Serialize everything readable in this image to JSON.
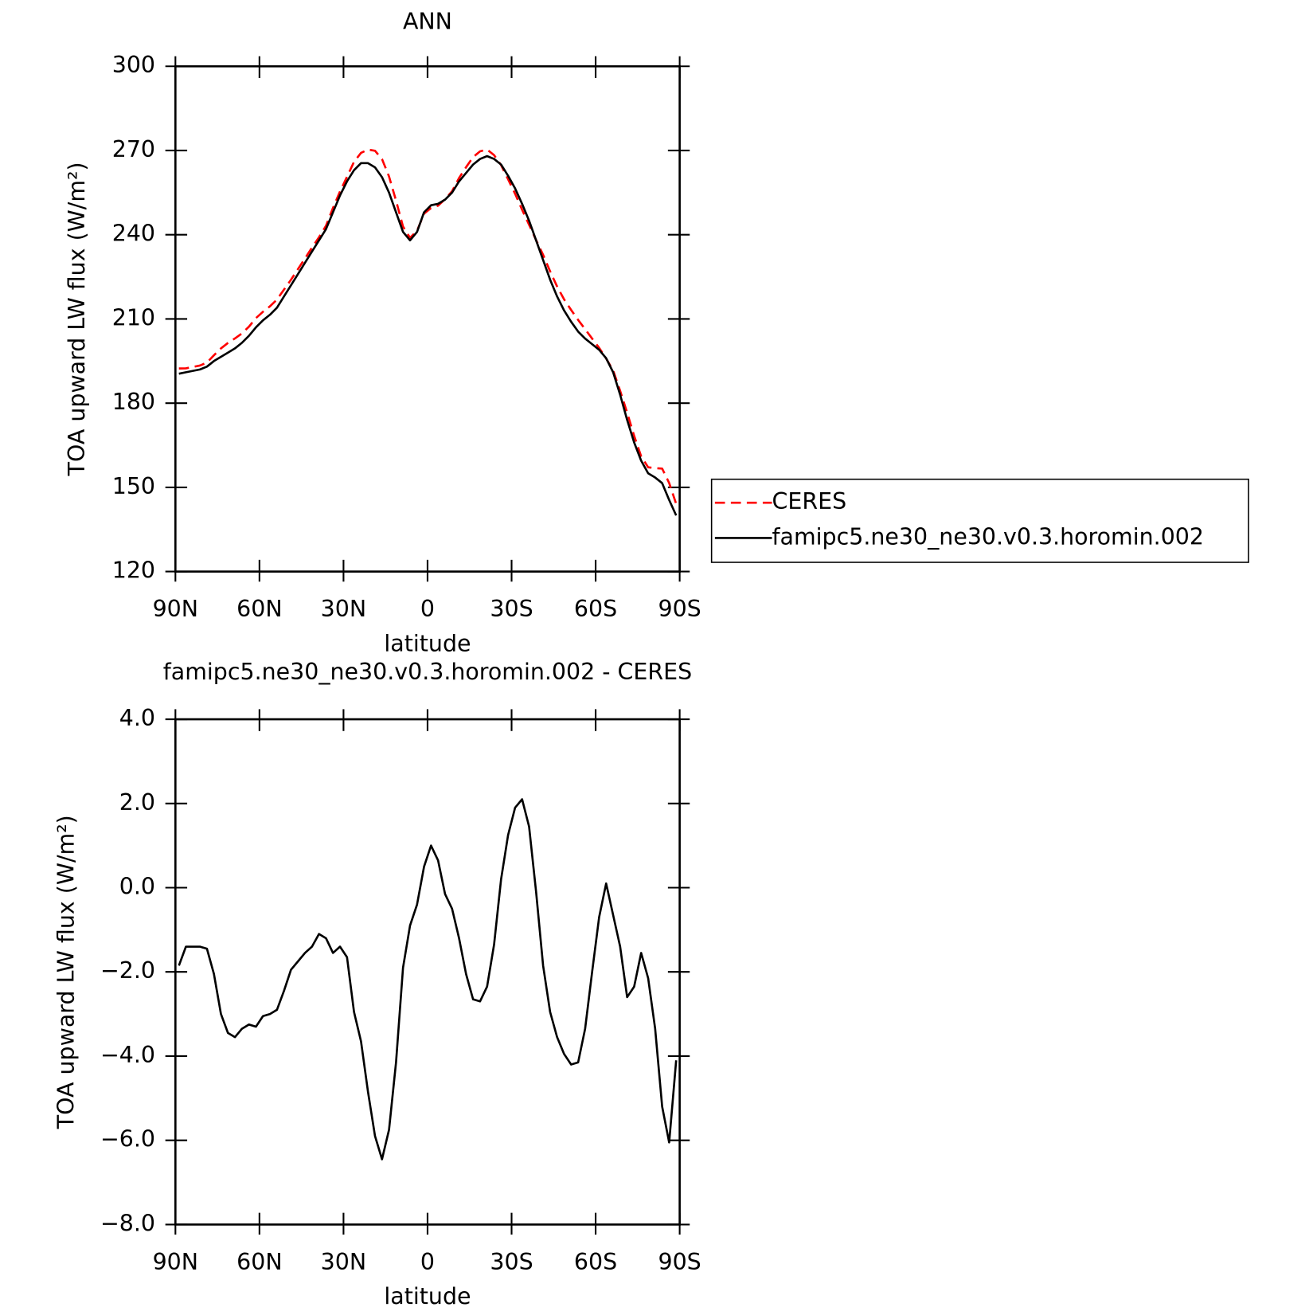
{
  "chart_data": [
    {
      "type": "line",
      "title": "ANN",
      "xlabel": "latitude",
      "ylabel": "TOA upward LW flux (W/m²)",
      "x": [
        88.75,
        86.25,
        83.75,
        81.25,
        78.75,
        76.25,
        73.75,
        71.25,
        68.75,
        66.25,
        63.75,
        61.25,
        58.75,
        56.25,
        53.75,
        51.25,
        48.75,
        46.25,
        43.75,
        41.25,
        38.75,
        36.25,
        33.75,
        31.25,
        28.75,
        26.25,
        23.75,
        21.25,
        18.75,
        16.25,
        13.75,
        11.25,
        8.75,
        6.25,
        3.75,
        1.25,
        -1.25,
        -3.75,
        -6.25,
        -8.75,
        -11.25,
        -13.75,
        -16.25,
        -18.75,
        -21.25,
        -23.75,
        -26.25,
        -28.75,
        -31.25,
        -33.75,
        -36.25,
        -38.75,
        -41.25,
        -43.75,
        -46.25,
        -48.75,
        -51.25,
        -53.75,
        -56.25,
        -58.75,
        -61.25,
        -63.75,
        -66.25,
        -68.75,
        -71.25,
        -73.75,
        -76.25,
        -78.75,
        -81.25,
        -83.75,
        -86.25,
        -88.75
      ],
      "xlim": [
        90,
        -90
      ],
      "xticks": [
        {
          "value": 90,
          "label": "90N"
        },
        {
          "value": 60,
          "label": "60N"
        },
        {
          "value": 30,
          "label": "30N"
        },
        0,
        {
          "value": -30,
          "label": "30S"
        },
        {
          "value": -60,
          "label": "60S"
        },
        {
          "value": -90,
          "label": "90S"
        }
      ],
      "ylim": [
        120,
        300
      ],
      "yticks": [
        120,
        150,
        180,
        210,
        240,
        270,
        300
      ],
      "legend": "outside-right",
      "series": [
        {
          "name": "CERES",
          "color": "#ff0000",
          "dash": true,
          "values": [
            192.35,
            192.4,
            192.9,
            193.4,
            194.45,
            197.05,
            199.5,
            201.45,
            203.05,
            204.85,
            207.25,
            210.3,
            212.55,
            214.5,
            216.9,
            220.45,
            223.95,
            227.75,
            231.55,
            235.4,
            239.1,
            243.2,
            249.55,
            255.4,
            260.65,
            265.95,
            269.15,
            270.35,
            269.9,
            266.95,
            260.75,
            252.15,
            242.9,
            238.9,
            241.4,
            247.5,
            249.5,
            250.35,
            252.65,
            255.5,
            260.2,
            264.05,
            267.65,
            269.7,
            270.35,
            268.35,
            264.8,
            259.75,
            254.6,
            248.9,
            243.55,
            238.1,
            232.85,
            226.95,
            221.55,
            216.95,
            213.2,
            209.65,
            206.35,
            203,
            199.7,
            195.9,
            191.65,
            184.4,
            176.6,
            168.35,
            161.05,
            157.15,
            156.85,
            156.7,
            151.55,
            144.1
          ]
        },
        {
          "name": "famipc5.ne30_ne30.v0.3.horomin.002",
          "color": "#000000",
          "dash": false,
          "values": [
            190.5,
            191,
            191.5,
            192,
            193,
            195,
            196.5,
            198,
            199.5,
            201.5,
            204,
            207,
            209.5,
            211.5,
            214,
            218,
            222,
            226,
            230,
            234,
            238,
            242,
            248,
            254,
            259,
            263,
            265.5,
            265.5,
            264,
            260.5,
            255,
            248,
            241,
            238,
            241,
            248,
            250.5,
            251,
            252.5,
            255,
            259,
            262,
            265,
            267,
            268,
            267,
            265,
            261,
            256.5,
            251,
            245,
            238,
            231,
            224,
            218,
            213,
            209,
            205.5,
            203,
            201,
            199,
            196,
            191,
            183,
            174,
            166,
            159.5,
            155,
            153.5,
            151.5,
            145.5,
            140
          ]
        }
      ]
    },
    {
      "type": "line",
      "title": "famipc5.ne30_ne30.v0.3.horomin.002 - CERES",
      "xlabel": "latitude",
      "ylabel": "TOA upward LW flux (W/m²)",
      "x": [
        88.75,
        86.25,
        83.75,
        81.25,
        78.75,
        76.25,
        73.75,
        71.25,
        68.75,
        66.25,
        63.75,
        61.25,
        58.75,
        56.25,
        53.75,
        51.25,
        48.75,
        46.25,
        43.75,
        41.25,
        38.75,
        36.25,
        33.75,
        31.25,
        28.75,
        26.25,
        23.75,
        21.25,
        18.75,
        16.25,
        13.75,
        11.25,
        8.75,
        6.25,
        3.75,
        1.25,
        -1.25,
        -3.75,
        -6.25,
        -8.75,
        -11.25,
        -13.75,
        -16.25,
        -18.75,
        -21.25,
        -23.75,
        -26.25,
        -28.75,
        -31.25,
        -33.75,
        -36.25,
        -38.75,
        -41.25,
        -43.75,
        -46.25,
        -48.75,
        -51.25,
        -53.75,
        -56.25,
        -58.75,
        -61.25,
        -63.75,
        -66.25,
        -68.75,
        -71.25,
        -73.75,
        -76.25,
        -78.75,
        -81.25,
        -83.75,
        -86.25,
        -88.75
      ],
      "xlim": [
        90,
        -90
      ],
      "xticks": [
        {
          "value": 90,
          "label": "90N"
        },
        {
          "value": 60,
          "label": "60N"
        },
        {
          "value": 30,
          "label": "30N"
        },
        0,
        {
          "value": -30,
          "label": "30S"
        },
        {
          "value": -60,
          "label": "60S"
        },
        {
          "value": -90,
          "label": "90S"
        }
      ],
      "ylim": [
        -8,
        4
      ],
      "yticks": [
        {
          "value": -8,
          "label": "−8.0"
        },
        {
          "value": -6,
          "label": "−6.0"
        },
        {
          "value": -4,
          "label": "−4.0"
        },
        {
          "value": -2,
          "label": "−2.0"
        },
        {
          "value": 0,
          "label": "0.0"
        },
        {
          "value": 2,
          "label": "2.0"
        },
        {
          "value": 4,
          "label": "4.0"
        }
      ],
      "color": "#000000",
      "values": [
        -1.85,
        -1.4,
        -1.4,
        -1.4,
        -1.45,
        -2.05,
        -3.0,
        -3.45,
        -3.55,
        -3.35,
        -3.25,
        -3.3,
        -3.05,
        -3.0,
        -2.9,
        -2.45,
        -1.95,
        -1.75,
        -1.55,
        -1.4,
        -1.1,
        -1.2,
        -1.55,
        -1.4,
        -1.65,
        -2.95,
        -3.65,
        -4.85,
        -5.9,
        -6.45,
        -5.75,
        -4.15,
        -1.9,
        -0.9,
        -0.4,
        0.5,
        1.0,
        0.65,
        -0.15,
        -0.5,
        -1.2,
        -2.05,
        -2.65,
        -2.7,
        -2.35,
        -1.35,
        0.2,
        1.25,
        1.9,
        2.1,
        1.45,
        -0.1,
        -1.85,
        -2.95,
        -3.55,
        -3.95,
        -4.2,
        -4.15,
        -3.35,
        -2.0,
        -0.7,
        0.1,
        -0.65,
        -1.4,
        -2.6,
        -2.35,
        -1.55,
        -2.15,
        -3.35,
        -5.2,
        -6.05,
        -4.1
      ]
    }
  ]
}
